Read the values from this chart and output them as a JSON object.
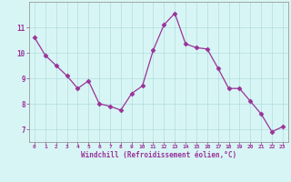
{
  "x": [
    0,
    1,
    2,
    3,
    4,
    5,
    6,
    7,
    8,
    9,
    10,
    11,
    12,
    13,
    14,
    15,
    16,
    17,
    18,
    19,
    20,
    21,
    22,
    23
  ],
  "y": [
    10.6,
    9.9,
    9.5,
    9.1,
    8.6,
    8.9,
    8.0,
    7.9,
    7.75,
    8.4,
    8.7,
    10.1,
    11.1,
    11.55,
    10.35,
    10.2,
    10.15,
    9.4,
    8.6,
    8.6,
    8.1,
    7.6,
    6.9,
    7.1
  ],
  "line_color": "#993399",
  "marker": "D",
  "marker_size": 2.5,
  "bg_color": "#d8f5f5",
  "grid_color": "#b0dede",
  "tick_color": "#993399",
  "xlabel": "Windchill (Refroidissement éolien,°C)",
  "xlabel_color": "#993399",
  "yticks": [
    7,
    8,
    9,
    10,
    11
  ],
  "xticks": [
    0,
    1,
    2,
    3,
    4,
    5,
    6,
    7,
    8,
    9,
    10,
    11,
    12,
    13,
    14,
    15,
    16,
    17,
    18,
    19,
    20,
    21,
    22,
    23
  ],
  "ylim": [
    6.5,
    12.0
  ],
  "xlim": [
    -0.5,
    23.5
  ],
  "spine_color": "#888888"
}
